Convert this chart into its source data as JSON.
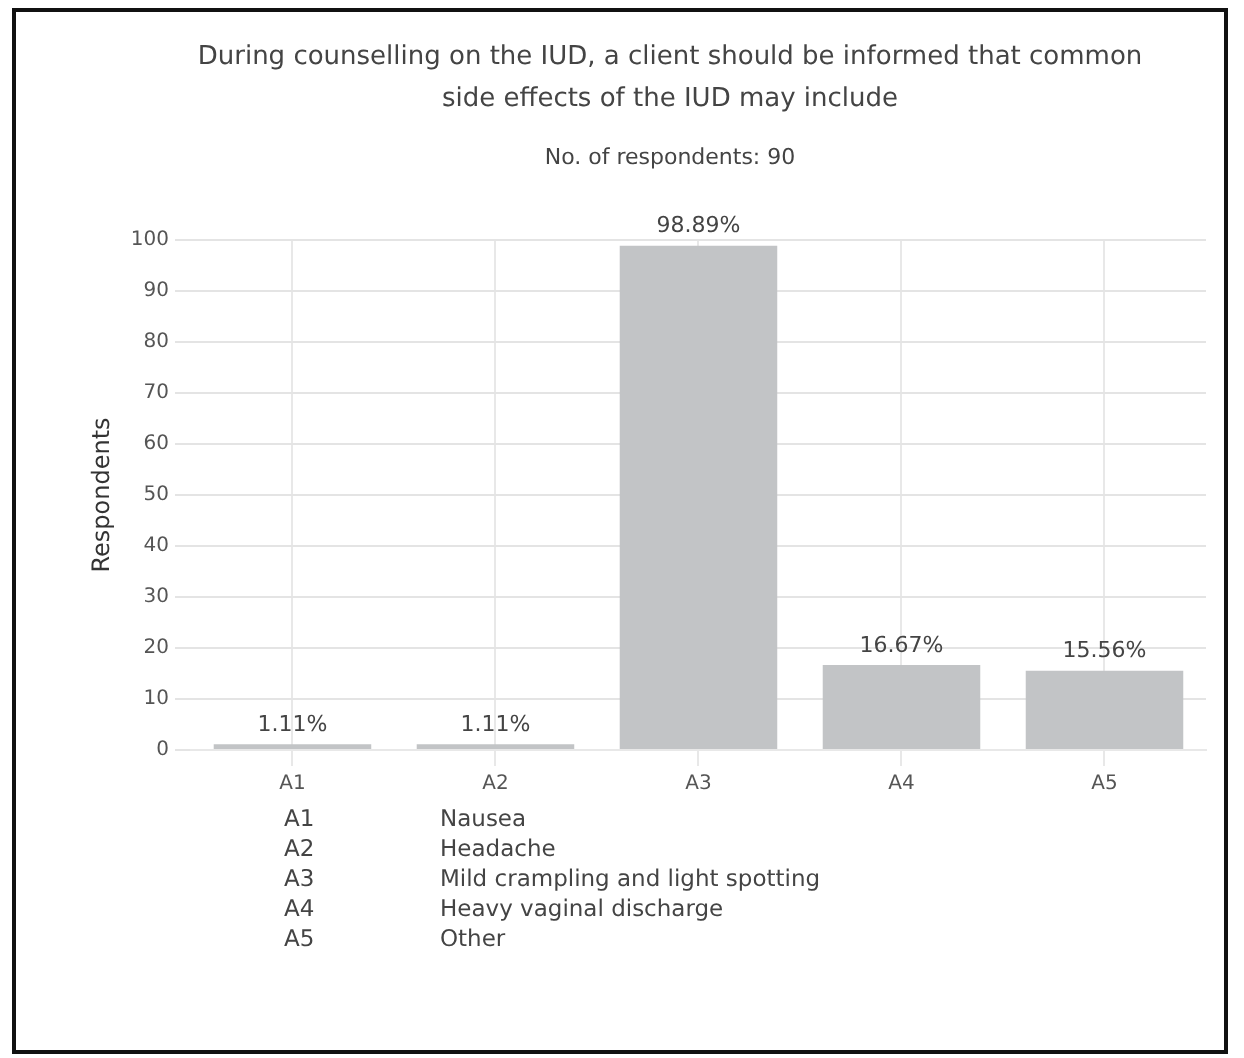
{
  "chart_data": {
    "type": "bar",
    "title": "During counselling on the IUD, a client should be informed that common side effects of the IUD may include",
    "subtitle": "No. of respondents: 90",
    "ylabel": "Respondents",
    "categories": [
      "A1",
      "A2",
      "A3",
      "A4",
      "A5"
    ],
    "values": [
      1.11,
      1.11,
      98.89,
      16.67,
      15.56
    ],
    "value_labels": [
      "1.11%",
      "1.11%",
      "98.89%",
      "16.67%",
      "15.56%"
    ],
    "color": "#c2c4c6",
    "ylim": [
      0,
      100
    ],
    "yticks": [
      0,
      10,
      20,
      30,
      40,
      50,
      60,
      70,
      80,
      90,
      100
    ],
    "grid": true,
    "legend": false,
    "annotations": [
      "A1",
      "Nausea",
      "A2",
      "Headache",
      "A3",
      "Mild crampling and light spotting",
      "A4",
      "Heavy vaginal discharge",
      "A5",
      "Other"
    ]
  }
}
